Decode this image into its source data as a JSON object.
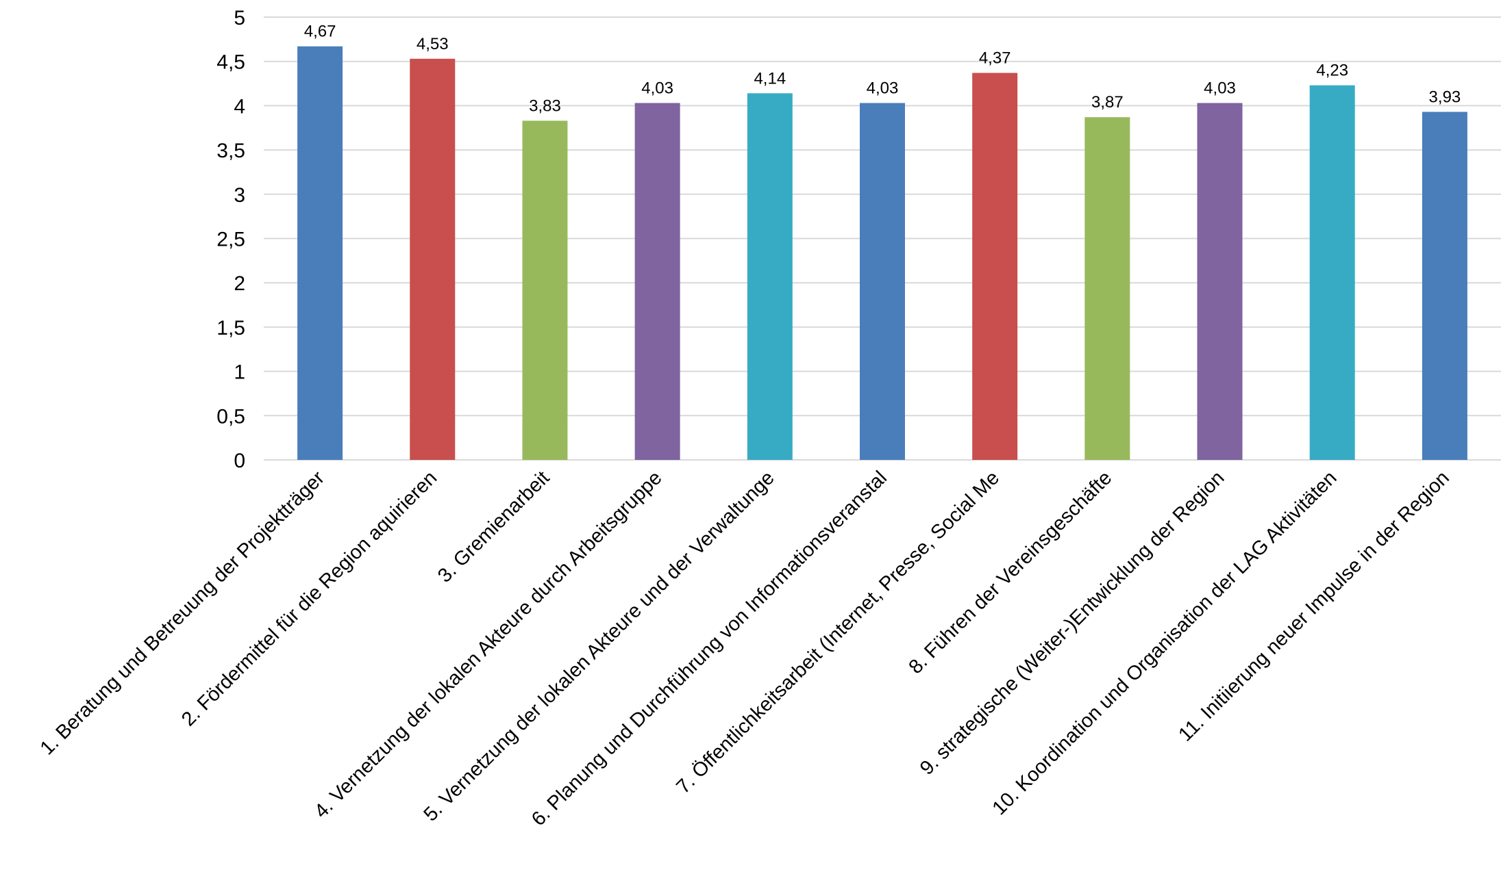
{
  "chart_data": {
    "type": "bar",
    "title": "",
    "xlabel": "",
    "ylabel": "",
    "ylim": [
      0,
      5
    ],
    "ytick_values": [
      0,
      0.5,
      1,
      1.5,
      2,
      2.5,
      3,
      3.5,
      4,
      4.5,
      5
    ],
    "ytick_labels": [
      "0",
      "0,5",
      "1",
      "1,5",
      "2",
      "2,5",
      "3",
      "3,5",
      "4",
      "4,5",
      "5"
    ],
    "grid": true,
    "legend": "none",
    "categories": [
      "1. Beratung und Betreuung der Projektträger",
      "2. Fördermittel für die Region aquirieren",
      "3. Gremienarbeit",
      "4. Vernetzung der lokalen Akteure durch Arbeitsgruppe",
      "5. Vernetzung der lokalen Akteure und der Verwaltunge",
      "6. Planung und Durchführung von Informationsveranstal",
      "7. Öffentlichkeitsarbeit (Internet, Presse, Social Me",
      "8. Führen der Vereinsgeschäfte",
      "9. strategische (Weiter-)Entwicklung der Region",
      "10. Koordination  und Organisation der LAG Aktivitäten",
      "11. Initiierung neuer Impulse in der Region"
    ],
    "values": [
      4.67,
      4.53,
      3.83,
      4.03,
      4.14,
      4.03,
      4.37,
      3.87,
      4.03,
      4.23,
      3.93
    ],
    "value_labels": [
      "4,67",
      "4,53",
      "3,83",
      "4,03",
      "4,14",
      "4,03",
      "4,37",
      "3,87",
      "4,03",
      "4,23",
      "3,93"
    ],
    "colors": [
      "#4a7ebb",
      "#c84f4d",
      "#98b95b",
      "#7f64a0",
      "#38abc4",
      "#4a7ebb",
      "#c84f4d",
      "#98b95b",
      "#7f64a0",
      "#38abc4",
      "#4a7ebb"
    ]
  }
}
